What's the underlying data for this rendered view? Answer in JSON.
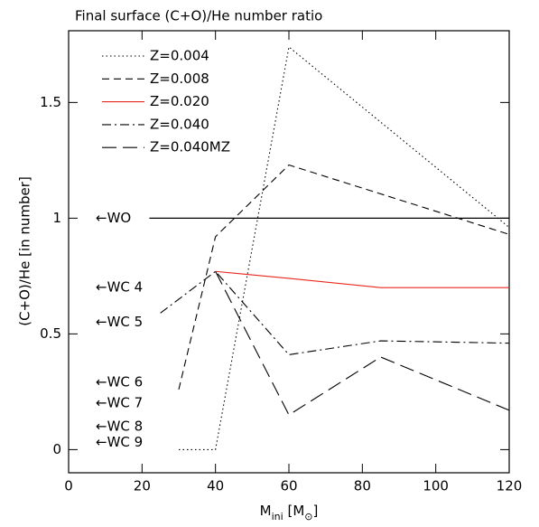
{
  "chart_data": {
    "type": "line",
    "title": "Final surface (C+O)/He number ratio",
    "xlabel": [
      "M",
      "ini",
      " [M",
      "⊙",
      "]"
    ],
    "ylabel": "(C+O)/He [in number]",
    "xlim": [
      0,
      120
    ],
    "ylim": [
      -0.1,
      1.81
    ],
    "xticks": [
      0,
      20,
      40,
      60,
      80,
      100,
      120
    ],
    "yticks": [
      0,
      0.5,
      1,
      1.5
    ],
    "legend": "upper left",
    "series": [
      {
        "name": "Z=0.004",
        "color": "#000000",
        "dash": "dotted",
        "x": [
          30,
          40,
          60,
          120
        ],
        "values": [
          0,
          0,
          1.74,
          0.96
        ]
      },
      {
        "name": "Z=0.008",
        "color": "#000000",
        "dash": "dashed",
        "x": [
          30,
          40,
          60,
          120
        ],
        "values": [
          0.26,
          0.92,
          1.23,
          0.93
        ]
      },
      {
        "name": "Z=0.020",
        "color": "#e8281e",
        "dash": "solid",
        "x": [
          40,
          60,
          85,
          120
        ],
        "values": [
          0.77,
          0.74,
          0.7,
          0.7
        ]
      },
      {
        "name": "Z=0.040",
        "color": "#000000",
        "dash": "dashdot",
        "x": [
          25,
          40,
          60,
          85,
          120
        ],
        "values": [
          0.59,
          0.77,
          0.41,
          0.47,
          0.46
        ]
      },
      {
        "name": "Z=0.040MZ",
        "color": "#000000",
        "dash": "longdash",
        "x": [
          40,
          60,
          85,
          120
        ],
        "values": [
          0.77,
          0.15,
          0.4,
          0.17
        ]
      }
    ],
    "reference_line": {
      "label": "←WO",
      "value": 1,
      "x": [
        22,
        120
      ]
    },
    "annotations": [
      {
        "label": "←WC 4",
        "value": 0.7
      },
      {
        "label": "←WC 5",
        "value": 0.55
      },
      {
        "label": "←WC 6",
        "value": 0.29
      },
      {
        "label": "←WC 7",
        "value": 0.2
      },
      {
        "label": "←WC 8",
        "value": 0.1
      },
      {
        "label": "←WC 9",
        "value": 0.03
      }
    ]
  }
}
